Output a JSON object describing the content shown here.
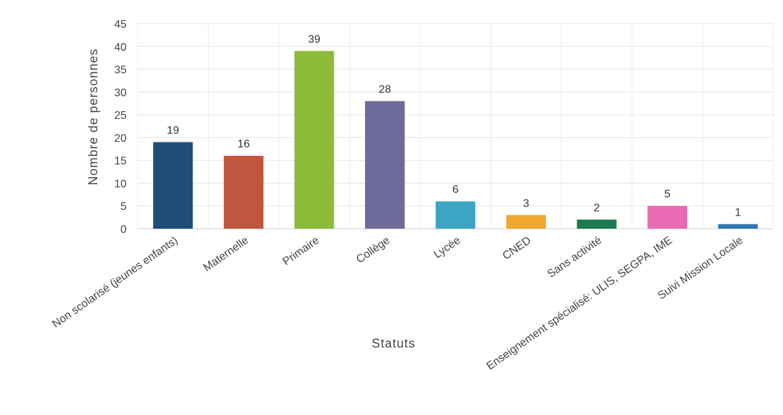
{
  "chart_data": {
    "type": "bar",
    "title": "",
    "xlabel": "Statuts",
    "ylabel": "Nombre de personnes",
    "ylim": [
      0,
      45
    ],
    "ytick_step": 5,
    "yticks": [
      "0",
      "5",
      "10",
      "15",
      "20",
      "25",
      "30",
      "35",
      "40",
      "45"
    ],
    "grid": true,
    "legend": "none",
    "categories": [
      "Non scolarisé (jeunes enfants)",
      "Maternelle",
      "Primaire",
      "Collège",
      "Lycée",
      "CNED",
      "Sans activité",
      "Enseignement spécialisé: ULIS, SEGPA, IME",
      "Suivi Mission Locale"
    ],
    "values": [
      19,
      16,
      39,
      28,
      6,
      3,
      2,
      5,
      1
    ],
    "data_labels": [
      "19",
      "16",
      "39",
      "28",
      "6",
      "3",
      "2",
      "5",
      "1"
    ],
    "colors": [
      "#1f4e79",
      "#c0563f",
      "#8dbb3a",
      "#6e6a9a",
      "#3aa6c4",
      "#f0a830",
      "#1e7a50",
      "#e86ab2",
      "#2e75b6"
    ]
  }
}
